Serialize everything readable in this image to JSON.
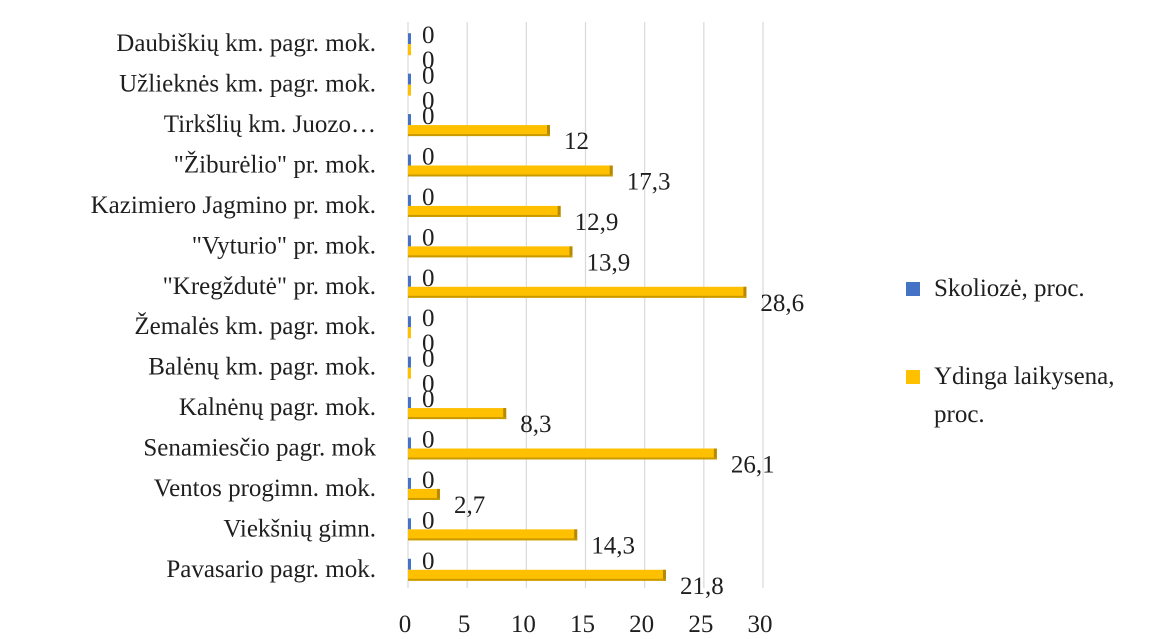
{
  "chart_data": {
    "type": "bar",
    "orientation": "horizontal",
    "categories": [
      "Pavasario pagr. mok.",
      "Viekšnių gimn.",
      "Ventos progimn. mok.",
      "Senamiesčio pagr. mok",
      "Kalnėnų pagr. mok.",
      "Balėnų km. pagr. mok.",
      "Žemalės km. pagr. mok.",
      "\"Kregždutė\" pr. mok.",
      "\"Vyturio\" pr. mok.",
      "Kazimiero Jagmino pr. mok.",
      "\"Žiburėlio\" pr. mok.",
      "Tirkšlių km. Juozo…",
      "Užlieknės km. pagr. mok.",
      "Daubiškių km. pagr. mok."
    ],
    "series": [
      {
        "name": "Skoliozė, proc.",
        "color": "#4472C4",
        "values": [
          0,
          0,
          0,
          0,
          0,
          0,
          0,
          0,
          0,
          0,
          0,
          0,
          0,
          0
        ],
        "labels": [
          "0",
          "0",
          "0",
          "0",
          "0",
          "0",
          "0",
          "0",
          "0",
          "0",
          "0",
          "0",
          "0",
          "0"
        ]
      },
      {
        "name": "Ydinga laikysena, proc.",
        "color": "#FFC000",
        "values": [
          21.8,
          14.3,
          2.7,
          26.1,
          8.3,
          0,
          0,
          28.6,
          13.9,
          12.9,
          17.3,
          12,
          0,
          0
        ],
        "labels": [
          "21,8",
          "14,3",
          "2,7",
          "26,1",
          "8,3",
          "0",
          "0",
          "28,6",
          "13,9",
          "12,9",
          "17,3",
          "12",
          "0",
          "0"
        ]
      }
    ],
    "xlim": [
      0,
      30
    ],
    "xticks": [
      "0",
      "5",
      "10",
      "15",
      "20",
      "25",
      "30"
    ],
    "grid": true,
    "legend": "right"
  },
  "legend": {
    "items": [
      {
        "lines": [
          "Skoliozė, proc."
        ],
        "color": "#4472C4"
      },
      {
        "lines": [
          "Ydinga laikysena,",
          "proc."
        ],
        "color": "#FFC000"
      }
    ]
  }
}
